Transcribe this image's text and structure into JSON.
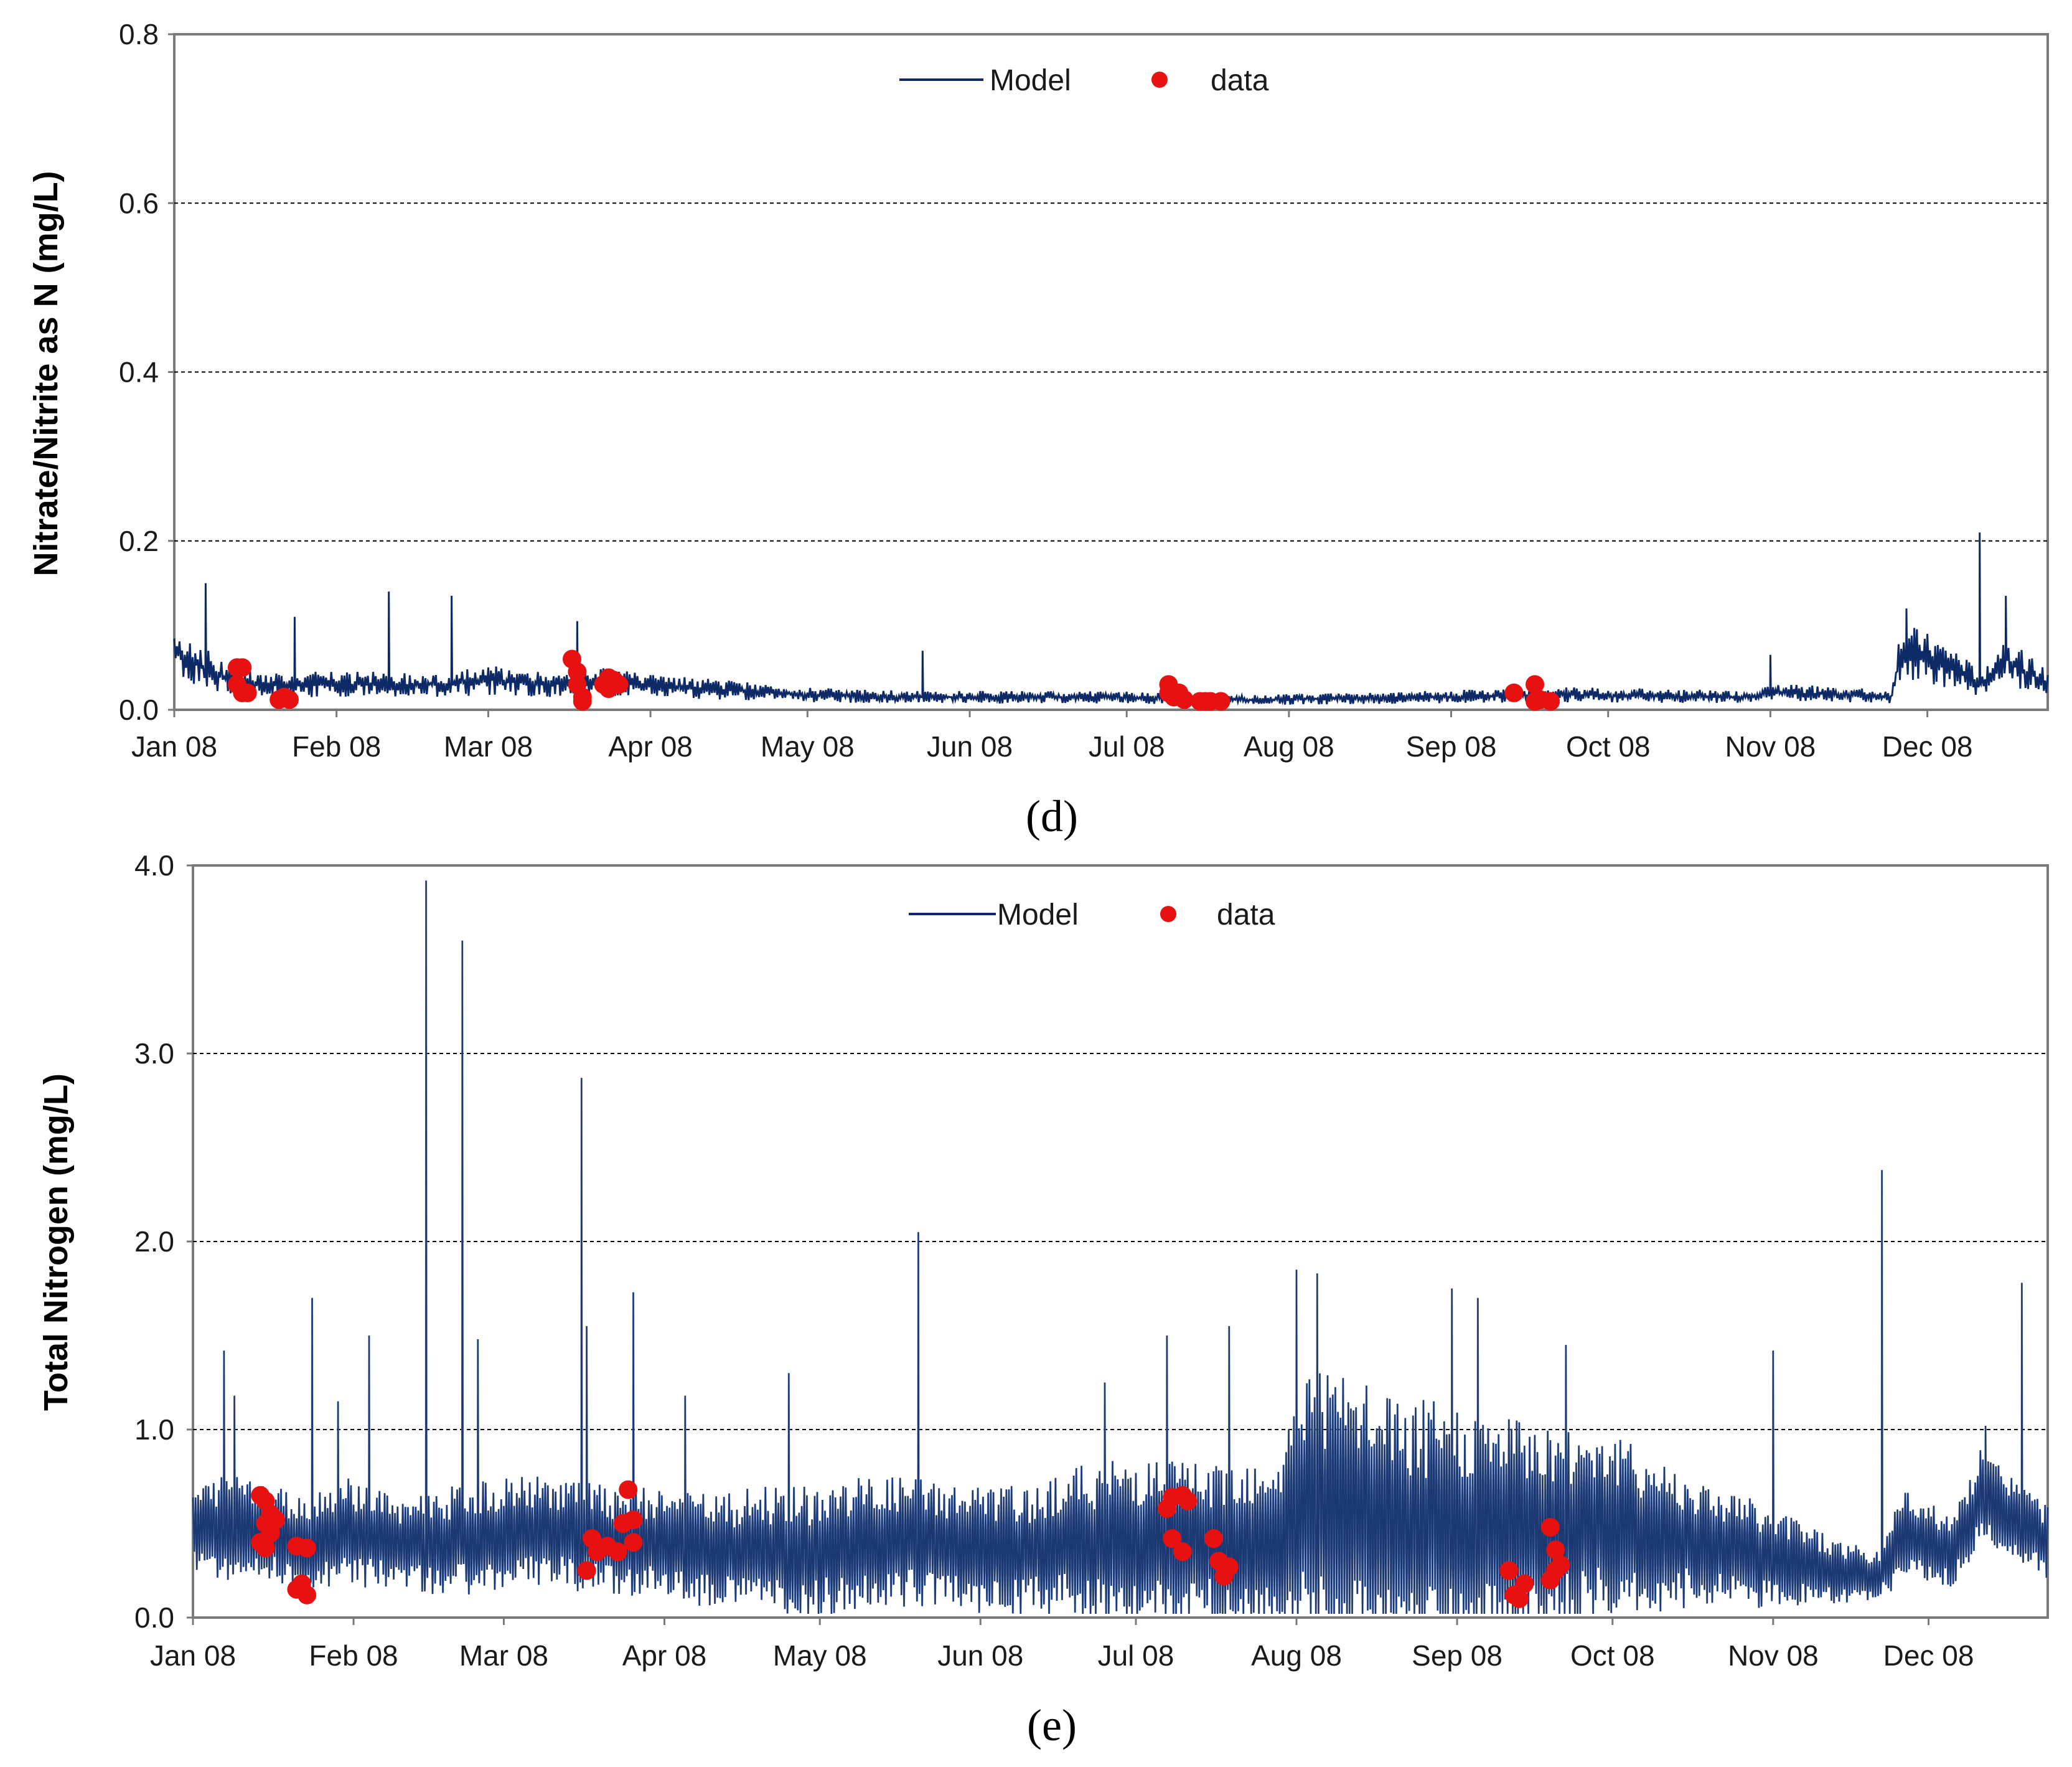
{
  "chart_data": [
    {
      "type": "line",
      "panel_label": "(d)",
      "title": "",
      "xlabel": "",
      "ylabel": "Nitrate/Nitrite  as N (mg/L)",
      "ylim": [
        0,
        0.8
      ],
      "yticks": [
        "0.0",
        "0.2",
        "0.4",
        "0.6",
        "0.8"
      ],
      "grid": "horizontal dashed at 0.2, 0.4, 0.6",
      "x_range_days": [
        0,
        358
      ],
      "xticks": [
        {
          "label": "Jan 08",
          "day": 0
        },
        {
          "label": "Feb 08",
          "day": 31
        },
        {
          "label": "Mar 08",
          "day": 60
        },
        {
          "label": "Apr 08",
          "day": 91
        },
        {
          "label": "May 08",
          "day": 121
        },
        {
          "label": "Jun 08",
          "day": 152
        },
        {
          "label": "Jul 08",
          "day": 182
        },
        {
          "label": "Aug 08",
          "day": 213
        },
        {
          "label": "Sep 08",
          "day": 244
        },
        {
          "label": "Oct 08",
          "day": 274
        },
        {
          "label": "Nov 08",
          "day": 305
        },
        {
          "label": "Dec 08",
          "day": 335
        }
      ],
      "legend": {
        "position": "top-center",
        "entries": [
          "Model",
          "data"
        ]
      },
      "series": [
        {
          "name": "Model",
          "color": "#0d2a66",
          "x": [
            0,
            2,
            6,
            8,
            15,
            22,
            30,
            40,
            45,
            50,
            60,
            70,
            78,
            80,
            90,
            100,
            110,
            120,
            130,
            140,
            150,
            160,
            170,
            180,
            190,
            200,
            210,
            220,
            230,
            240,
            250,
            260,
            270,
            280,
            290,
            300,
            305,
            310,
            320,
            328,
            330,
            340,
            345,
            350,
            358
          ],
          "values": [
            0.07,
            0.06,
            0.05,
            0.04,
            0.03,
            0.03,
            0.03,
            0.03,
            0.03,
            0.03,
            0.035,
            0.03,
            0.03,
            0.035,
            0.028,
            0.025,
            0.022,
            0.018,
            0.016,
            0.015,
            0.015,
            0.015,
            0.015,
            0.015,
            0.013,
            0.012,
            0.012,
            0.013,
            0.014,
            0.015,
            0.016,
            0.017,
            0.018,
            0.017,
            0.016,
            0.015,
            0.02,
            0.02,
            0.018,
            0.015,
            0.07,
            0.05,
            0.03,
            0.06,
            0.03
          ],
          "spikes": [
            {
              "x": 6,
              "y": 0.15
            },
            {
              "x": 23,
              "y": 0.11
            },
            {
              "x": 41,
              "y": 0.14
            },
            {
              "x": 53,
              "y": 0.135
            },
            {
              "x": 77,
              "y": 0.105
            },
            {
              "x": 143,
              "y": 0.07
            },
            {
              "x": 305,
              "y": 0.065
            },
            {
              "x": 331,
              "y": 0.12
            },
            {
              "x": 345,
              "y": 0.21
            },
            {
              "x": 350,
              "y": 0.135
            }
          ]
        },
        {
          "name": "data",
          "color": "#e81111",
          "points": [
            {
              "x": 12,
              "y": 0.05
            },
            {
              "x": 13,
              "y": 0.05
            },
            {
              "x": 12,
              "y": 0.03
            },
            {
              "x": 13,
              "y": 0.02
            },
            {
              "x": 14,
              "y": 0.02
            },
            {
              "x": 20,
              "y": 0.012
            },
            {
              "x": 21,
              "y": 0.015
            },
            {
              "x": 22,
              "y": 0.012
            },
            {
              "x": 76,
              "y": 0.06
            },
            {
              "x": 77,
              "y": 0.045
            },
            {
              "x": 77,
              "y": 0.03
            },
            {
              "x": 78,
              "y": 0.015
            },
            {
              "x": 78,
              "y": 0.01
            },
            {
              "x": 82,
              "y": 0.03
            },
            {
              "x": 83,
              "y": 0.038
            },
            {
              "x": 84,
              "y": 0.035
            },
            {
              "x": 85,
              "y": 0.03
            },
            {
              "x": 83,
              "y": 0.025
            },
            {
              "x": 190,
              "y": 0.03
            },
            {
              "x": 190,
              "y": 0.02
            },
            {
              "x": 191,
              "y": 0.015
            },
            {
              "x": 192,
              "y": 0.02
            },
            {
              "x": 193,
              "y": 0.012
            },
            {
              "x": 196,
              "y": 0.01
            },
            {
              "x": 197,
              "y": 0.01
            },
            {
              "x": 198,
              "y": 0.01
            },
            {
              "x": 200,
              "y": 0.01
            },
            {
              "x": 256,
              "y": 0.02
            },
            {
              "x": 260,
              "y": 0.03
            },
            {
              "x": 261,
              "y": 0.012
            },
            {
              "x": 263,
              "y": 0.01
            },
            {
              "x": 260,
              "y": 0.01
            }
          ]
        }
      ]
    },
    {
      "type": "line",
      "panel_label": "(e)",
      "title": "",
      "xlabel": "",
      "ylabel": "Total Nitrogen (mg/L)",
      "ylim": [
        0,
        4.0
      ],
      "yticks": [
        "0.0",
        "1.0",
        "2.0",
        "3.0",
        "4.0"
      ],
      "grid": "horizontal dashed at 1.0, 2.0, 3.0",
      "x_range_days": [
        0,
        358
      ],
      "xticks": [
        {
          "label": "Jan 08",
          "day": 0
        },
        {
          "label": "Feb 08",
          "day": 31
        },
        {
          "label": "Mar 08",
          "day": 60
        },
        {
          "label": "Apr 08",
          "day": 91
        },
        {
          "label": "May 08",
          "day": 121
        },
        {
          "label": "Jun 08",
          "day": 152
        },
        {
          "label": "Jul 08",
          "day": 182
        },
        {
          "label": "Aug 08",
          "day": 213
        },
        {
          "label": "Sep 08",
          "day": 244
        },
        {
          "label": "Oct 08",
          "day": 274
        },
        {
          "label": "Nov 08",
          "day": 305
        },
        {
          "label": "Dec 08",
          "day": 335
        }
      ],
      "legend": {
        "position": "top-center",
        "entries": [
          "Model",
          "data"
        ]
      },
      "series": [
        {
          "name": "Model",
          "color": "#0d2a66",
          "x": [
            0,
            10,
            20,
            30,
            40,
            50,
            60,
            70,
            80,
            90,
            100,
            110,
            120,
            130,
            140,
            150,
            160,
            170,
            180,
            190,
            200,
            210,
            215,
            220,
            230,
            240,
            250,
            260,
            270,
            280,
            290,
            300,
            305,
            310,
            315,
            325,
            330,
            340,
            345,
            350,
            358
          ],
          "values": [
            0.45,
            0.5,
            0.4,
            0.45,
            0.4,
            0.4,
            0.45,
            0.45,
            0.4,
            0.4,
            0.35,
            0.35,
            0.35,
            0.4,
            0.4,
            0.35,
            0.35,
            0.4,
            0.4,
            0.4,
            0.4,
            0.4,
            0.6,
            0.5,
            0.5,
            0.45,
            0.45,
            0.45,
            0.5,
            0.45,
            0.4,
            0.35,
            0.3,
            0.3,
            0.25,
            0.2,
            0.45,
            0.35,
            0.65,
            0.55,
            0.4
          ],
          "amplitude": [
            0.25,
            0.3,
            0.25,
            0.3,
            0.25,
            0.3,
            0.3,
            0.3,
            0.3,
            0.3,
            0.3,
            0.35,
            0.35,
            0.35,
            0.35,
            0.35,
            0.35,
            0.4,
            0.45,
            0.45,
            0.45,
            0.5,
            0.8,
            0.8,
            0.7,
            0.7,
            0.65,
            0.6,
            0.55,
            0.45,
            0.35,
            0.3,
            0.25,
            0.25,
            0.2,
            0.15,
            0.25,
            0.2,
            0.25,
            0.25,
            0.2
          ],
          "spikes": [
            {
              "x": 6,
              "y": 1.42
            },
            {
              "x": 8,
              "y": 1.18
            },
            {
              "x": 23,
              "y": 1.7
            },
            {
              "x": 28,
              "y": 1.15
            },
            {
              "x": 34,
              "y": 1.5
            },
            {
              "x": 45,
              "y": 3.92
            },
            {
              "x": 52,
              "y": 3.6
            },
            {
              "x": 55,
              "y": 1.48
            },
            {
              "x": 75,
              "y": 2.87
            },
            {
              "x": 76,
              "y": 1.55
            },
            {
              "x": 85,
              "y": 1.73
            },
            {
              "x": 95,
              "y": 1.18
            },
            {
              "x": 115,
              "y": 1.3
            },
            {
              "x": 140,
              "y": 2.05
            },
            {
              "x": 176,
              "y": 1.25
            },
            {
              "x": 188,
              "y": 1.5
            },
            {
              "x": 200,
              "y": 1.55
            },
            {
              "x": 213,
              "y": 1.85
            },
            {
              "x": 217,
              "y": 1.83
            },
            {
              "x": 243,
              "y": 1.75
            },
            {
              "x": 248,
              "y": 1.7
            },
            {
              "x": 265,
              "y": 1.45
            },
            {
              "x": 305,
              "y": 1.42
            },
            {
              "x": 326,
              "y": 2.38
            },
            {
              "x": 346,
              "y": 1.02
            },
            {
              "x": 353,
              "y": 1.78
            }
          ]
        },
        {
          "name": "data",
          "color": "#e81111",
          "points": [
            {
              "x": 13,
              "y": 0.65
            },
            {
              "x": 14,
              "y": 0.62
            },
            {
              "x": 15,
              "y": 0.55
            },
            {
              "x": 14,
              "y": 0.5
            },
            {
              "x": 15,
              "y": 0.45
            },
            {
              "x": 13,
              "y": 0.4
            },
            {
              "x": 14,
              "y": 0.37
            },
            {
              "x": 16,
              "y": 0.52
            },
            {
              "x": 20,
              "y": 0.38
            },
            {
              "x": 22,
              "y": 0.37
            },
            {
              "x": 21,
              "y": 0.18
            },
            {
              "x": 22,
              "y": 0.12
            },
            {
              "x": 20,
              "y": 0.15
            },
            {
              "x": 76,
              "y": 0.25
            },
            {
              "x": 77,
              "y": 0.42
            },
            {
              "x": 78,
              "y": 0.35
            },
            {
              "x": 80,
              "y": 0.38
            },
            {
              "x": 82,
              "y": 0.35
            },
            {
              "x": 83,
              "y": 0.5
            },
            {
              "x": 85,
              "y": 0.52
            },
            {
              "x": 85,
              "y": 0.4
            },
            {
              "x": 84,
              "y": 0.68
            },
            {
              "x": 188,
              "y": 0.58
            },
            {
              "x": 189,
              "y": 0.64
            },
            {
              "x": 191,
              "y": 0.65
            },
            {
              "x": 192,
              "y": 0.62
            },
            {
              "x": 189,
              "y": 0.42
            },
            {
              "x": 191,
              "y": 0.35
            },
            {
              "x": 197,
              "y": 0.42
            },
            {
              "x": 198,
              "y": 0.3
            },
            {
              "x": 199,
              "y": 0.22
            },
            {
              "x": 200,
              "y": 0.27
            },
            {
              "x": 254,
              "y": 0.25
            },
            {
              "x": 255,
              "y": 0.12
            },
            {
              "x": 256,
              "y": 0.1
            },
            {
              "x": 257,
              "y": 0.18
            },
            {
              "x": 262,
              "y": 0.48
            },
            {
              "x": 262,
              "y": 0.2
            },
            {
              "x": 263,
              "y": 0.36
            },
            {
              "x": 263,
              "y": 0.25
            },
            {
              "x": 264,
              "y": 0.28
            }
          ]
        }
      ]
    }
  ]
}
